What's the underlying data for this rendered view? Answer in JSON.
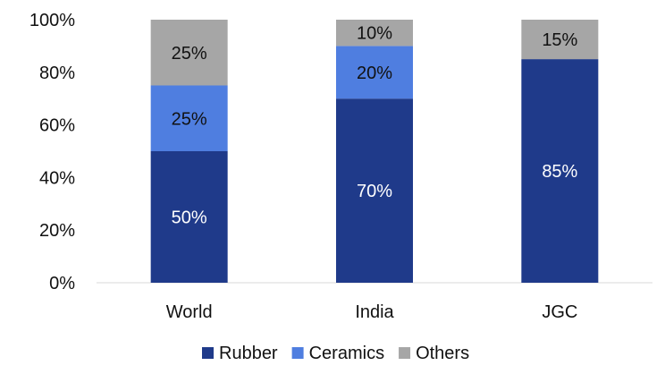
{
  "chart_data": {
    "type": "bar",
    "stacked": true,
    "percent": true,
    "categories": [
      "World",
      "India",
      "JGC"
    ],
    "series": [
      {
        "name": "Rubber",
        "color": "#1f3a8a",
        "values": [
          50,
          70,
          85
        ],
        "labels": [
          "50%",
          "70%",
          "85%"
        ],
        "label_color": "#ffffff"
      },
      {
        "name": "Ceramics",
        "color": "#4f7ee0",
        "values": [
          25,
          20,
          0
        ],
        "labels": [
          "25%",
          "20%",
          ""
        ],
        "label_color": "#111111"
      },
      {
        "name": "Others",
        "color": "#a6a6a6",
        "values": [
          25,
          10,
          15
        ],
        "labels": [
          "25%",
          "10%",
          "15%"
        ],
        "label_color": "#111111"
      }
    ],
    "ylim": [
      0,
      100
    ],
    "yticks": [
      0,
      20,
      40,
      60,
      80,
      100
    ],
    "ytick_labels": [
      "0%",
      "20%",
      "40%",
      "60%",
      "80%",
      "100%"
    ],
    "grid": false,
    "legend_position": "bottom"
  }
}
